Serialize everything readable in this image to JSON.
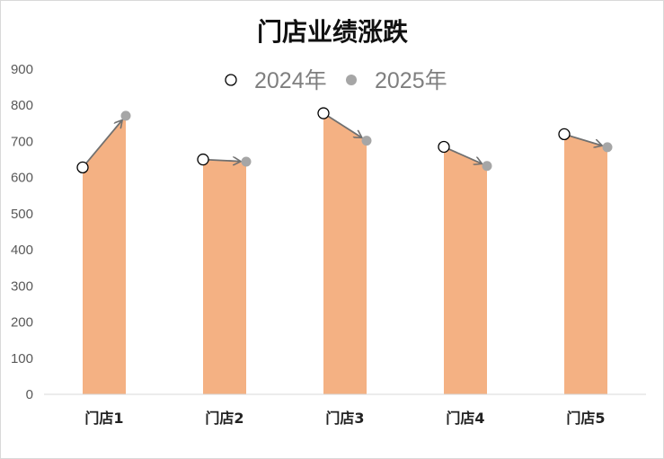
{
  "chart_data": {
    "type": "area",
    "title": "门店业绩涨跌",
    "categories": [
      "门店1",
      "门店2",
      "门店3",
      "门店4",
      "门店5"
    ],
    "series": [
      {
        "name": "2024年",
        "values": [
          628,
          650,
          778,
          685,
          720
        ]
      },
      {
        "name": "2025年",
        "values": [
          771,
          644,
          702,
          632,
          684
        ]
      }
    ],
    "ylim": [
      0,
      900
    ],
    "yticks": [
      "0",
      "100",
      "200",
      "300",
      "400",
      "500",
      "600",
      "700",
      "800",
      "900"
    ],
    "xlabel": "",
    "ylabel": "",
    "grid": false,
    "legend_position": "top",
    "colors": {
      "area": "#F4B183",
      "marker_2024_fill": "#ffffff",
      "marker_2024_stroke": "#000000",
      "marker_2025_fill": "#A6A6A6",
      "arrow": "#707070"
    }
  }
}
